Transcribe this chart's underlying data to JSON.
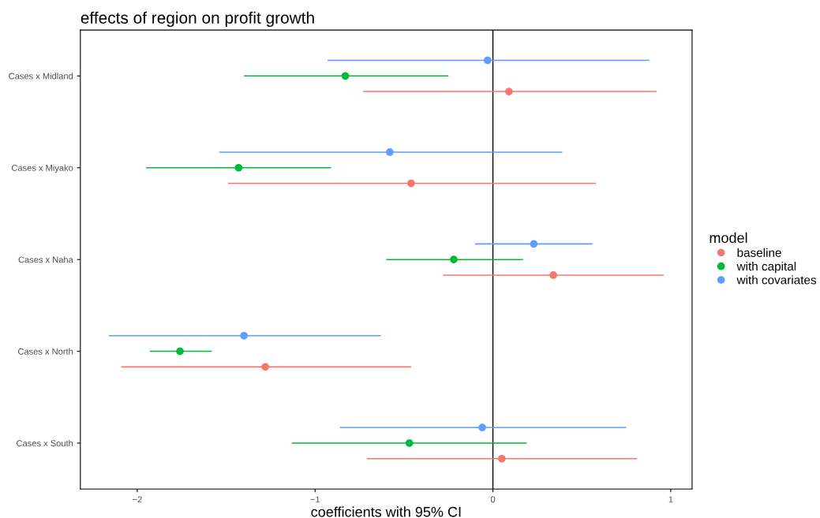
{
  "chart_data": {
    "type": "scatter",
    "orientation": "horizontal",
    "title": "effects of region on profit growth",
    "xlabel": "coefficients with 95% CI",
    "legend_title": "model",
    "legend": "right",
    "grid": false,
    "marker": "circle",
    "categories": [
      "Cases x Midland",
      "Cases x Miyako",
      "Cases x Naha",
      "Cases x North",
      "Cases x South"
    ],
    "xlim": [
      -2.32,
      1.12
    ],
    "xticks": [
      {
        "value": -2,
        "label": "−2"
      },
      {
        "value": -1,
        "label": "−1"
      },
      0,
      1
    ],
    "ref_lines": [
      {
        "axis": "x",
        "value": 0,
        "color": "#000000"
      }
    ],
    "series": [
      {
        "name": "baseline",
        "color": "#f8766d",
        "values": [
          0.09,
          -0.46,
          0.34,
          -1.28,
          0.05
        ],
        "errors": [
          [
            -0.73,
            0.92
          ],
          [
            -1.49,
            0.58
          ],
          [
            -0.28,
            0.96
          ],
          [
            -2.09,
            -0.46
          ],
          [
            -0.71,
            0.81
          ]
        ]
      },
      {
        "name": "with capital",
        "color": "#00ba38",
        "values": [
          -0.83,
          -1.43,
          -0.22,
          -1.76,
          -0.47
        ],
        "errors": [
          [
            -1.4,
            -0.25
          ],
          [
            -1.95,
            -0.91
          ],
          [
            -0.6,
            0.17
          ],
          [
            -1.93,
            -1.58
          ],
          [
            -1.13,
            0.19
          ]
        ]
      },
      {
        "name": "with covariates",
        "color": "#619cff",
        "values": [
          -0.03,
          -0.58,
          0.23,
          -1.4,
          -0.06
        ],
        "errors": [
          [
            -0.93,
            0.88
          ],
          [
            -1.54,
            0.39
          ],
          [
            -0.1,
            0.56
          ],
          [
            -2.16,
            -0.63
          ],
          [
            -0.86,
            0.75
          ]
        ]
      }
    ]
  }
}
